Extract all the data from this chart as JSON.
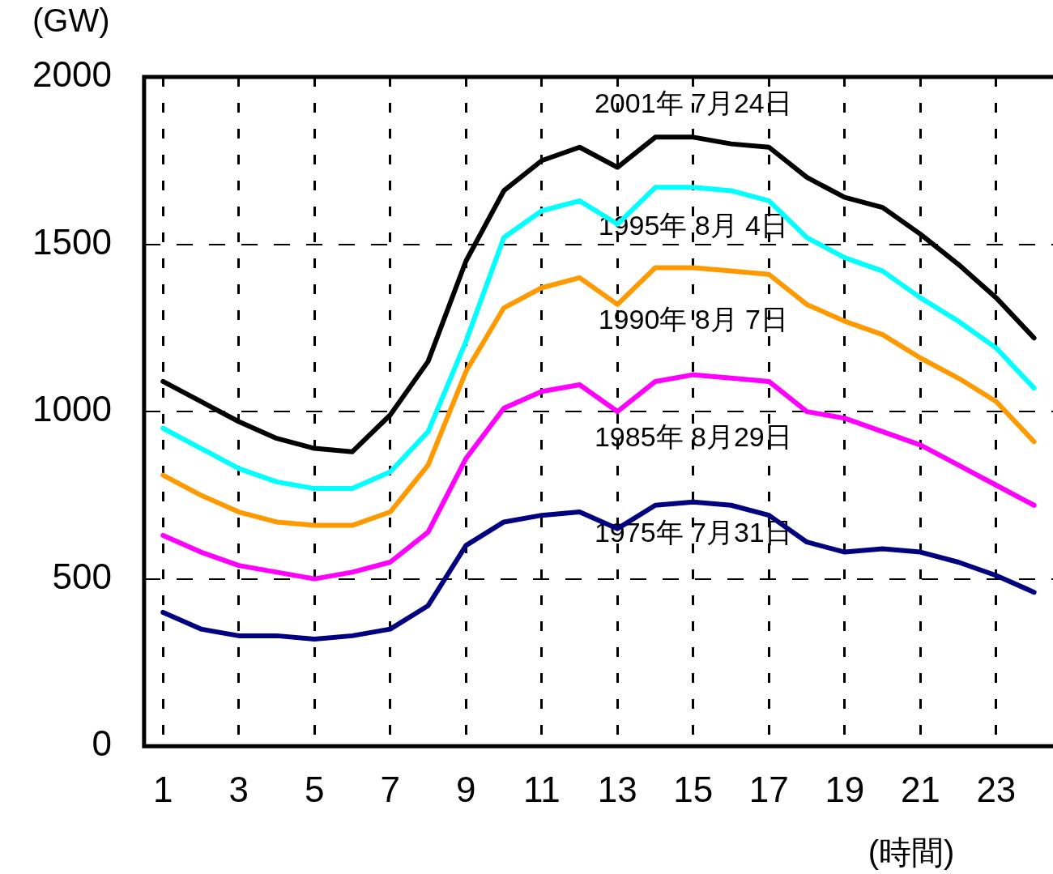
{
  "chart_data": {
    "type": "line",
    "xlabel": "(時間)",
    "ylabel": "(GW)",
    "x": [
      1,
      2,
      3,
      4,
      5,
      6,
      7,
      8,
      9,
      10,
      11,
      12,
      13,
      14,
      15,
      16,
      17,
      18,
      19,
      20,
      21,
      22,
      23,
      24
    ],
    "xlim": [
      0.5,
      24.5
    ],
    "xticks": [
      1,
      3,
      5,
      7,
      9,
      11,
      13,
      15,
      17,
      19,
      21,
      23
    ],
    "ylim": [
      0,
      2000
    ],
    "yticks": [
      0,
      500,
      1000,
      1500,
      2000
    ],
    "grid": true,
    "legend": false,
    "marker": "none",
    "line_style": "solid",
    "series": [
      {
        "name": "2001年 7月24日",
        "color": "#000000",
        "values": [
          1090,
          1030,
          970,
          920,
          890,
          880,
          990,
          1150,
          1450,
          1660,
          1750,
          1790,
          1730,
          1820,
          1820,
          1800,
          1790,
          1700,
          1640,
          1610,
          1530,
          1440,
          1340,
          1220
        ]
      },
      {
        "name": "1995年 8月 4日",
        "color": "#00ffff",
        "values": [
          950,
          890,
          830,
          790,
          770,
          770,
          820,
          940,
          1210,
          1520,
          1600,
          1630,
          1560,
          1670,
          1670,
          1660,
          1630,
          1520,
          1460,
          1420,
          1340,
          1270,
          1190,
          1070
        ]
      },
      {
        "name": "1990年 8月 7日",
        "color": "#ff9900",
        "values": [
          810,
          750,
          700,
          670,
          660,
          660,
          700,
          840,
          1120,
          1310,
          1370,
          1400,
          1320,
          1430,
          1430,
          1420,
          1410,
          1320,
          1270,
          1230,
          1160,
          1100,
          1030,
          910
        ]
      },
      {
        "name": "1985年 8月29日",
        "color": "#ff00ff",
        "values": [
          630,
          580,
          540,
          520,
          500,
          520,
          550,
          640,
          860,
          1010,
          1060,
          1080,
          1000,
          1090,
          1110,
          1100,
          1090,
          1000,
          980,
          940,
          900,
          840,
          780,
          720
        ]
      },
      {
        "name": "1975年 7月31日",
        "color": "#000080",
        "values": [
          400,
          350,
          330,
          330,
          320,
          330,
          350,
          420,
          600,
          670,
          690,
          700,
          650,
          720,
          730,
          720,
          690,
          610,
          580,
          590,
          580,
          550,
          510,
          460
        ]
      }
    ]
  }
}
